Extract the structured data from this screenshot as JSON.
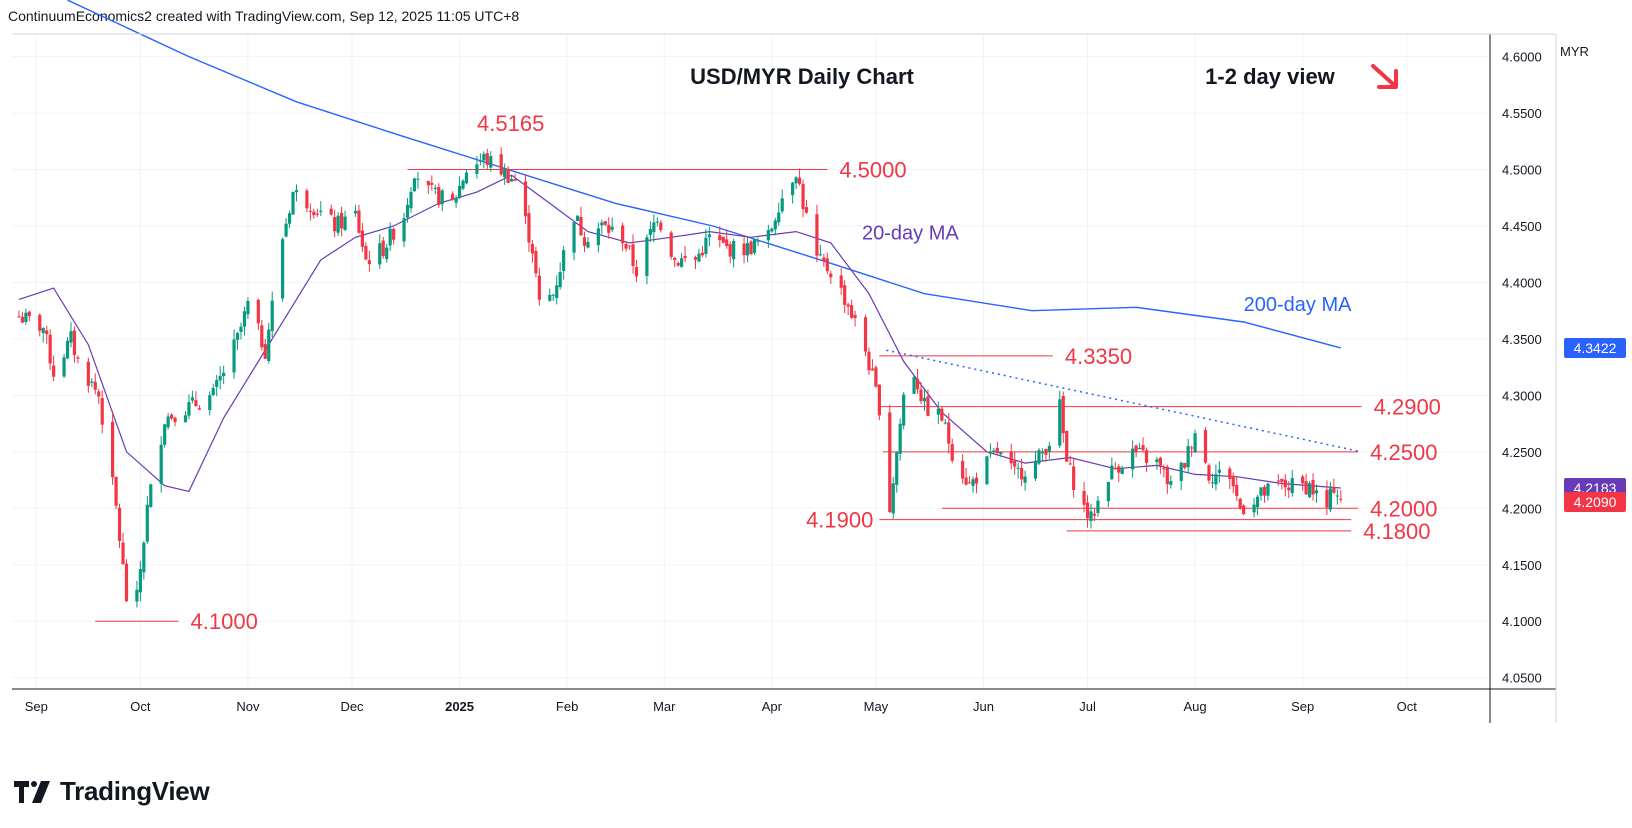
{
  "header": {
    "text": "ContinuumEconomics2 created with TradingView.com, Sep 12, 2025 11:05 UTC+8"
  },
  "brand": {
    "name": "TradingView",
    "logo_icon": "tradingview-logo-icon"
  },
  "axis": {
    "currency": "MYR"
  },
  "badges": {
    "ma200": {
      "value": "4.3422",
      "color": "#2962ff"
    },
    "ma20": {
      "value": "4.2183",
      "color": "#673ab7"
    },
    "last": {
      "value": "4.2090",
      "color": "#f23645"
    }
  },
  "chart_data": {
    "type": "candlestick",
    "title": "USD/MYR Daily Chart",
    "view": {
      "text": "1-2 day view",
      "direction_icon": "arrow-down-right-icon",
      "color": "#f23645"
    },
    "ylim": [
      4.04,
      4.62
    ],
    "y_ticks": [
      "4.6000",
      "4.5500",
      "4.5000",
      "4.4500",
      "4.4000",
      "4.3500",
      "4.3000",
      "4.2500",
      "4.2000",
      "4.1500",
      "4.1000",
      "4.0500"
    ],
    "x_ticks": [
      {
        "label": "Sep",
        "date": "2024-09-01"
      },
      {
        "label": "Oct",
        "date": "2024-10-01"
      },
      {
        "label": "Nov",
        "date": "2024-11-01"
      },
      {
        "label": "Dec",
        "date": "2024-12-01"
      },
      {
        "label": "2025",
        "date": "2025-01-01",
        "bold": true
      },
      {
        "label": "Feb",
        "date": "2025-02-01"
      },
      {
        "label": "Mar",
        "date": "2025-03-01"
      },
      {
        "label": "Apr",
        "date": "2025-04-01"
      },
      {
        "label": "May",
        "date": "2025-05-01"
      },
      {
        "label": "Jun",
        "date": "2025-06-01"
      },
      {
        "label": "Jul",
        "date": "2025-07-01"
      },
      {
        "label": "Aug",
        "date": "2025-08-01"
      },
      {
        "label": "Sep",
        "date": "2025-09-01"
      },
      {
        "label": "Oct",
        "date": "2025-10-01"
      }
    ],
    "colors": {
      "up": "#089981",
      "down": "#f23645",
      "ma20": "#673ab7",
      "ma200": "#2962ff",
      "level": "#f23645",
      "grid": "#f0f3fa"
    },
    "price_path": [
      {
        "date": "2024-08-27",
        "price": 4.37
      },
      {
        "date": "2024-09-03",
        "price": 4.36
      },
      {
        "date": "2024-09-06",
        "price": 4.32
      },
      {
        "date": "2024-09-11",
        "price": 4.35
      },
      {
        "date": "2024-09-13",
        "price": 4.33
      },
      {
        "date": "2024-09-19",
        "price": 4.3
      },
      {
        "date": "2024-09-24",
        "price": 4.2
      },
      {
        "date": "2024-09-27",
        "price": 4.12
      },
      {
        "date": "2024-09-30",
        "price": 4.12
      },
      {
        "date": "2024-10-03",
        "price": 4.2
      },
      {
        "date": "2024-10-08",
        "price": 4.28
      },
      {
        "date": "2024-10-15",
        "price": 4.29
      },
      {
        "date": "2024-10-22",
        "price": 4.3
      },
      {
        "date": "2024-10-29",
        "price": 4.35
      },
      {
        "date": "2024-11-01",
        "price": 4.38
      },
      {
        "date": "2024-11-06",
        "price": 4.34
      },
      {
        "date": "2024-11-11",
        "price": 4.44
      },
      {
        "date": "2024-11-14",
        "price": 4.48
      },
      {
        "date": "2024-11-19",
        "price": 4.47
      },
      {
        "date": "2024-11-26",
        "price": 4.45
      },
      {
        "date": "2024-12-02",
        "price": 4.46
      },
      {
        "date": "2024-12-05",
        "price": 4.42
      },
      {
        "date": "2024-12-10",
        "price": 4.43
      },
      {
        "date": "2024-12-16",
        "price": 4.46
      },
      {
        "date": "2024-12-19",
        "price": 4.5
      },
      {
        "date": "2024-12-23",
        "price": 4.48
      },
      {
        "date": "2024-12-30",
        "price": 4.47
      },
      {
        "date": "2025-01-03",
        "price": 4.5
      },
      {
        "date": "2025-01-08",
        "price": 4.51
      },
      {
        "date": "2025-01-13",
        "price": 4.5
      },
      {
        "date": "2025-01-17",
        "price": 4.49
      },
      {
        "date": "2025-01-22",
        "price": 4.43
      },
      {
        "date": "2025-01-24",
        "price": 4.38
      },
      {
        "date": "2025-01-28",
        "price": 4.39
      },
      {
        "date": "2025-02-03",
        "price": 4.46
      },
      {
        "date": "2025-02-06",
        "price": 4.44
      },
      {
        "date": "2025-02-11",
        "price": 4.45
      },
      {
        "date": "2025-02-17",
        "price": 4.44
      },
      {
        "date": "2025-02-21",
        "price": 4.41
      },
      {
        "date": "2025-02-27",
        "price": 4.46
      },
      {
        "date": "2025-03-04",
        "price": 4.42
      },
      {
        "date": "2025-03-10",
        "price": 4.42
      },
      {
        "date": "2025-03-14",
        "price": 4.44
      },
      {
        "date": "2025-03-19",
        "price": 4.43
      },
      {
        "date": "2025-03-25",
        "price": 4.43
      },
      {
        "date": "2025-03-31",
        "price": 4.44
      },
      {
        "date": "2025-04-03",
        "price": 4.47
      },
      {
        "date": "2025-04-08",
        "price": 4.5
      },
      {
        "date": "2025-04-10",
        "price": 4.47
      },
      {
        "date": "2025-04-14",
        "price": 4.42
      },
      {
        "date": "2025-04-18",
        "price": 4.41
      },
      {
        "date": "2025-04-23",
        "price": 4.38
      },
      {
        "date": "2025-04-28",
        "price": 4.34
      },
      {
        "date": "2025-05-02",
        "price": 4.29
      },
      {
        "date": "2025-05-05",
        "price": 4.2
      },
      {
        "date": "2025-05-07",
        "price": 4.25
      },
      {
        "date": "2025-05-09",
        "price": 4.3
      },
      {
        "date": "2025-05-12",
        "price": 4.32
      },
      {
        "date": "2025-05-15",
        "price": 4.29
      },
      {
        "date": "2025-05-20",
        "price": 4.28
      },
      {
        "date": "2025-05-23",
        "price": 4.25
      },
      {
        "date": "2025-05-28",
        "price": 4.22
      },
      {
        "date": "2025-06-02",
        "price": 4.24
      },
      {
        "date": "2025-06-05",
        "price": 4.25
      },
      {
        "date": "2025-06-10",
        "price": 4.23
      },
      {
        "date": "2025-06-16",
        "price": 4.24
      },
      {
        "date": "2025-06-20",
        "price": 4.26
      },
      {
        "date": "2025-06-23",
        "price": 4.29
      },
      {
        "date": "2025-06-25",
        "price": 4.24
      },
      {
        "date": "2025-06-30",
        "price": 4.2
      },
      {
        "date": "2025-07-02",
        "price": 4.19
      },
      {
        "date": "2025-07-07",
        "price": 4.23
      },
      {
        "date": "2025-07-14",
        "price": 4.25
      },
      {
        "date": "2025-07-21",
        "price": 4.24
      },
      {
        "date": "2025-07-25",
        "price": 4.22
      },
      {
        "date": "2025-07-29",
        "price": 4.24
      },
      {
        "date": "2025-08-01",
        "price": 4.27
      },
      {
        "date": "2025-08-05",
        "price": 4.23
      },
      {
        "date": "2025-08-11",
        "price": 4.23
      },
      {
        "date": "2025-08-14",
        "price": 4.2
      },
      {
        "date": "2025-08-19",
        "price": 4.21
      },
      {
        "date": "2025-08-25",
        "price": 4.22
      },
      {
        "date": "2025-08-29",
        "price": 4.22
      },
      {
        "date": "2025-09-03",
        "price": 4.22
      },
      {
        "date": "2025-09-08",
        "price": 4.2
      },
      {
        "date": "2025-09-10",
        "price": 4.22
      },
      {
        "date": "2025-09-12",
        "price": 4.209
      }
    ],
    "ma20": [
      {
        "date": "2024-08-27",
        "price": 4.385
      },
      {
        "date": "2024-09-06",
        "price": 4.395
      },
      {
        "date": "2024-09-16",
        "price": 4.345
      },
      {
        "date": "2024-09-27",
        "price": 4.25
      },
      {
        "date": "2024-10-08",
        "price": 4.22
      },
      {
        "date": "2024-10-15",
        "price": 4.215
      },
      {
        "date": "2024-10-25",
        "price": 4.28
      },
      {
        "date": "2024-11-04",
        "price": 4.33
      },
      {
        "date": "2024-11-12",
        "price": 4.37
      },
      {
        "date": "2024-11-22",
        "price": 4.42
      },
      {
        "date": "2024-12-02",
        "price": 4.44
      },
      {
        "date": "2024-12-13",
        "price": 4.45
      },
      {
        "date": "2024-12-26",
        "price": 4.47
      },
      {
        "date": "2025-01-06",
        "price": 4.48
      },
      {
        "date": "2025-01-16",
        "price": 4.495
      },
      {
        "date": "2025-01-27",
        "price": 4.47
      },
      {
        "date": "2025-02-07",
        "price": 4.445
      },
      {
        "date": "2025-02-19",
        "price": 4.435
      },
      {
        "date": "2025-03-03",
        "price": 4.44
      },
      {
        "date": "2025-03-14",
        "price": 4.445
      },
      {
        "date": "2025-03-26",
        "price": 4.44
      },
      {
        "date": "2025-04-08",
        "price": 4.445
      },
      {
        "date": "2025-04-18",
        "price": 4.435
      },
      {
        "date": "2025-04-29",
        "price": 4.39
      },
      {
        "date": "2025-05-09",
        "price": 4.33
      },
      {
        "date": "2025-05-20",
        "price": 4.285
      },
      {
        "date": "2025-06-02",
        "price": 4.25
      },
      {
        "date": "2025-06-13",
        "price": 4.24
      },
      {
        "date": "2025-06-26",
        "price": 4.245
      },
      {
        "date": "2025-07-09",
        "price": 4.235
      },
      {
        "date": "2025-07-21",
        "price": 4.238
      },
      {
        "date": "2025-08-01",
        "price": 4.23
      },
      {
        "date": "2025-08-13",
        "price": 4.228
      },
      {
        "date": "2025-08-26",
        "price": 4.222
      },
      {
        "date": "2025-09-12",
        "price": 4.218
      }
    ],
    "ma200": [
      {
        "date": "2024-09-10",
        "price": 4.65
      },
      {
        "date": "2024-10-15",
        "price": 4.6
      },
      {
        "date": "2024-11-15",
        "price": 4.56
      },
      {
        "date": "2024-12-15",
        "price": 4.53
      },
      {
        "date": "2025-01-15",
        "price": 4.5
      },
      {
        "date": "2025-02-15",
        "price": 4.47
      },
      {
        "date": "2025-03-15",
        "price": 4.45
      },
      {
        "date": "2025-04-15",
        "price": 4.42
      },
      {
        "date": "2025-05-15",
        "price": 4.39
      },
      {
        "date": "2025-06-15",
        "price": 4.375
      },
      {
        "date": "2025-07-15",
        "price": 4.378
      },
      {
        "date": "2025-08-15",
        "price": 4.365
      },
      {
        "date": "2025-09-12",
        "price": 4.342
      }
    ],
    "ma_labels": [
      {
        "text": "20-day MA",
        "color": "#673ab7",
        "date": "2025-04-27",
        "price": 4.445
      },
      {
        "text": "200-day MA",
        "color": "#2962ff",
        "date": "2025-08-15",
        "price": 4.382
      }
    ],
    "levels": [
      {
        "value": 4.5,
        "label": "4.5000",
        "from": "2024-12-17",
        "to": "2025-04-17",
        "label_side": "right"
      },
      {
        "value": 4.335,
        "label": "4.3350",
        "from": "2025-05-02",
        "to": "2025-06-21",
        "label_side": "right"
      },
      {
        "value": 4.29,
        "label": "4.2900",
        "from": "2025-05-02",
        "to": "2025-09-18",
        "label_side": "right"
      },
      {
        "value": 4.25,
        "label": "4.2500",
        "from": "2025-05-03",
        "to": "2025-09-17",
        "label_side": "right"
      },
      {
        "value": 4.2,
        "label": "4.2000",
        "from": "2025-05-20",
        "to": "2025-09-17",
        "label_side": "right"
      },
      {
        "value": 4.19,
        "label": "4.1900",
        "from": "2025-05-02",
        "to": "2025-09-15",
        "label_side": "left"
      },
      {
        "value": 4.18,
        "label": "4.1800",
        "from": "2025-06-25",
        "to": "2025-09-15",
        "label_side": "right"
      },
      {
        "value": 4.1,
        "label": "4.1000",
        "from": "2024-09-18",
        "to": "2024-10-12",
        "label_side": "right"
      }
    ],
    "peak_label": {
      "text": "4.5165",
      "date": "2025-01-02",
      "price": 4.5165
    },
    "trendline": {
      "from": {
        "date": "2025-05-04",
        "price": 4.34
      },
      "to": {
        "date": "2025-09-18",
        "price": 4.25
      }
    }
  }
}
